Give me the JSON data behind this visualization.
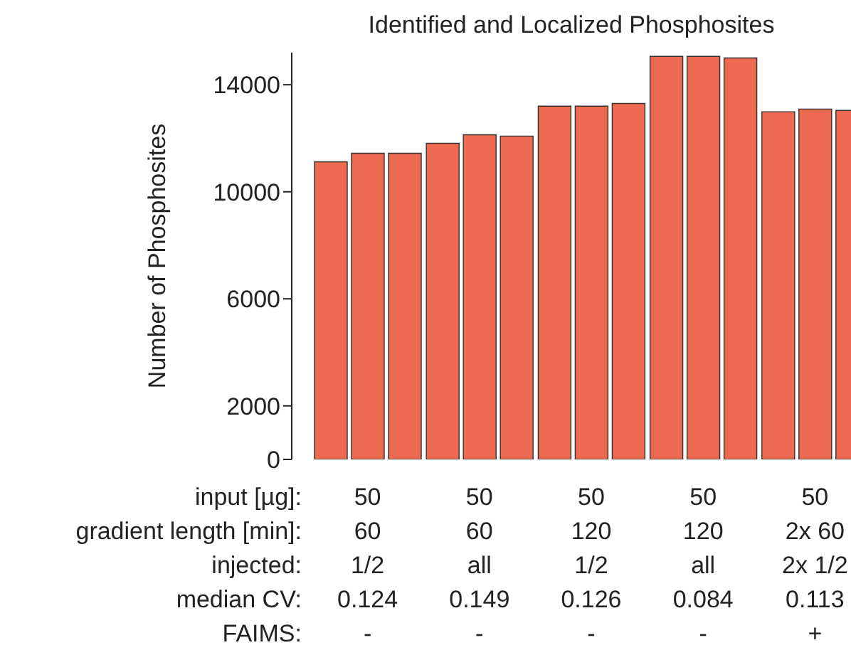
{
  "chart_data": {
    "type": "bar",
    "title": "Identified and Localized Phosphosites",
    "ylabel": "Number of Phosphosites",
    "categories": [
      null,
      null,
      null,
      null,
      null
    ],
    "series": [
      {
        "color": "#ec6a50",
        "values": [
          11120,
          11810,
          13200,
          15060,
          12990
        ]
      },
      {
        "color": "#ec6a50",
        "values": [
          11440,
          12130,
          13200,
          15060,
          13090
        ]
      },
      {
        "color": "#ec6a50",
        "values": [
          11440,
          12080,
          13300,
          15000,
          13040
        ]
      }
    ],
    "ylim": [
      0,
      15200
    ],
    "yticks": [
      0,
      2000,
      6000,
      10000,
      14000
    ],
    "grid": false,
    "legend": false,
    "tick_labels": "y",
    "annotations": [
      "input [µg]:",
      "50",
      "50",
      "50",
      "50",
      "50",
      "gradient length [min]:",
      "60",
      "60",
      "120",
      "120",
      "2x 60",
      "injected:",
      "1/2",
      "all",
      "1/2",
      "all",
      "2x 1/2",
      "median CV:",
      "0.124",
      "0.149",
      "0.126",
      "0.084",
      "0.113",
      "FAIMS:",
      "-",
      "-",
      "-",
      "-",
      "+"
    ]
  }
}
